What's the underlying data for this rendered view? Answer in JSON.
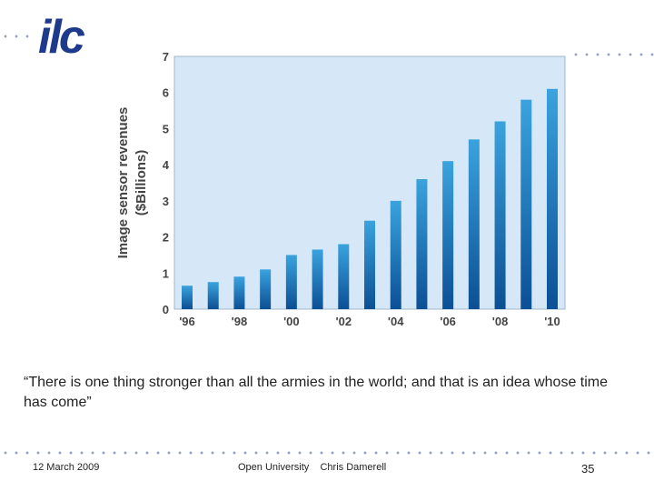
{
  "slide": {
    "logo_text": "ilc",
    "quote": "“There is one thing stronger than all the armies in the world; and that is an idea whose time has come”",
    "footer": {
      "date": "12 March 2009",
      "presenter": "Open University    Chris Damerell",
      "page": "35"
    }
  },
  "colors": {
    "dots": "#9aa3c8",
    "logo": "#1e3a8c",
    "plot_bg": "#d6e8f7",
    "bar_top": "#3aa3de",
    "bar_bottom": "#0b4f94"
  },
  "chart_data": {
    "type": "bar",
    "title": "",
    "xlabel": "",
    "ylabel": "Image sensor revenues ($Billions)",
    "ylabel_lines": [
      "Image sensor revenues",
      "($Billions)"
    ],
    "ylim": [
      0,
      7
    ],
    "yticks": [
      0,
      1,
      2,
      3,
      4,
      5,
      6,
      7
    ],
    "x": [
      1996,
      1997,
      1998,
      1999,
      2000,
      2001,
      2002,
      2003,
      2004,
      2005,
      2006,
      2007,
      2008,
      2009,
      2010
    ],
    "values": [
      0.65,
      0.75,
      0.9,
      1.1,
      1.5,
      1.65,
      1.8,
      2.45,
      3.0,
      3.6,
      4.1,
      4.7,
      5.2,
      5.8,
      6.1
    ],
    "xtick_labels": [
      "'96",
      "'98",
      "'00",
      "'02",
      "'04",
      "'06",
      "'08",
      "'10"
    ],
    "xtick_years": [
      1996,
      1998,
      2000,
      2002,
      2004,
      2006,
      2008,
      2010
    ],
    "grid": false
  }
}
